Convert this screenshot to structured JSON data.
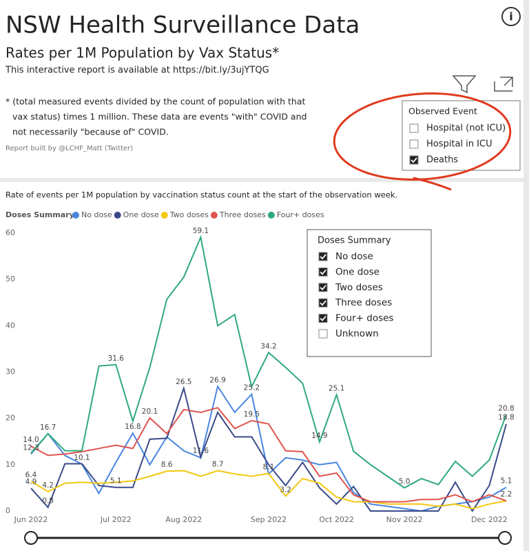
{
  "header": {
    "title": "NSW Health Surveillance Data",
    "subtitle": "Rates per 1M Population by Vax Status*",
    "link_note": "This interactive report is available at https://bit.ly/3ujYTQG",
    "footnote": [
      "* (total measured events divided by the count of population with that",
      "vax status) times 1 million.  These data are events \"with\" COVID and",
      "not necessarily \"because of\" COVID."
    ],
    "credit": "Report built by @LCHF_Matt (Twitter)"
  },
  "event_slicer": {
    "title": "Observed Event",
    "items": [
      {
        "label": "Hospital (not ICU)",
        "checked": false
      },
      {
        "label": "Hospital in ICU",
        "checked": false
      },
      {
        "label": "Deaths",
        "checked": true
      }
    ]
  },
  "dose_slicer": {
    "title": "Doses Summary",
    "items": [
      {
        "label": "No dose",
        "checked": true
      },
      {
        "label": "One dose",
        "checked": true
      },
      {
        "label": "Two doses",
        "checked": true
      },
      {
        "label": "Three doses",
        "checked": true
      },
      {
        "label": "Four+ doses",
        "checked": true
      },
      {
        "label": "Unknown",
        "checked": false
      }
    ]
  },
  "chart_data": {
    "type": "line",
    "title": "Rate of events per 1M population by vaccination status count at the start of the observation week.",
    "legend_title": "Doses Summary",
    "categories": [
      "Jun 2022",
      null,
      null,
      null,
      null,
      "Jul 2022",
      null,
      null,
      null,
      "Aug 2022",
      null,
      null,
      null,
      null,
      "Sep 2022",
      null,
      null,
      null,
      "Oct 2022",
      null,
      null,
      null,
      "Nov 2022",
      null,
      null,
      null,
      null,
      "Dec 2022",
      null
    ],
    "ylim": [
      0,
      60
    ],
    "yticks": [
      0,
      10,
      20,
      30,
      40,
      50,
      60
    ],
    "grid": false,
    "series": [
      {
        "name": "No dose",
        "color": "#4a86e0",
        "values": [
          12.3,
          16.7,
          12,
          10.1,
          3.8,
          10.5,
          16.8,
          10,
          16,
          13,
          11.5,
          26.9,
          21.3,
          25.2,
          8,
          11.5,
          11,
          10,
          10.5,
          4,
          1.5,
          1,
          0.5,
          0,
          1,
          1.5,
          2,
          3,
          5.1
        ],
        "value_labels": [
          "12.3",
          "16.7",
          null,
          "10.1",
          null,
          null,
          "16.8",
          null,
          null,
          null,
          null,
          "26.9",
          null,
          "25.2",
          null,
          null,
          null,
          null,
          null,
          null,
          null,
          null,
          null,
          null,
          null,
          null,
          null,
          null,
          "5.1"
        ]
      },
      {
        "name": "One dose",
        "color": "#3a4a8a",
        "values": [
          4.9,
          0.8,
          10.2,
          10.2,
          5.5,
          5.1,
          5.1,
          15.5,
          15.7,
          26.5,
          11.6,
          21.3,
          16,
          16,
          10,
          5.5,
          10.5,
          5,
          1.5,
          5.3,
          0,
          0,
          0,
          0,
          0,
          6.2,
          0,
          5.5,
          18.8
        ],
        "value_labels": [
          "4.9",
          "0.8",
          null,
          null,
          null,
          "5.1",
          null,
          null,
          null,
          "26.5",
          "11.6",
          null,
          null,
          null,
          null,
          null,
          null,
          null,
          null,
          null,
          null,
          null,
          null,
          null,
          null,
          null,
          null,
          null,
          "18.8"
        ]
      },
      {
        "name": "Two doses",
        "color": "#f2c80f",
        "values": [
          6.4,
          4.2,
          6,
          6.2,
          6,
          6.2,
          6.5,
          7.5,
          8.6,
          8.7,
          7.5,
          8.7,
          8,
          7.5,
          8.1,
          3.2,
          7,
          6,
          3,
          2,
          2,
          1.5,
          1.5,
          1.5,
          1,
          1.5,
          0.5,
          1.5,
          2.2
        ],
        "value_labels": [
          "6.4",
          "4.2",
          null,
          null,
          null,
          null,
          null,
          null,
          "8.6",
          null,
          null,
          "8.7",
          null,
          null,
          "8.1",
          "3.2",
          null,
          null,
          null,
          null,
          null,
          null,
          null,
          null,
          null,
          null,
          null,
          null,
          "2.2"
        ]
      },
      {
        "name": "Three doses",
        "color": "#e0534e",
        "values": [
          14,
          12,
          12.3,
          12.8,
          13.5,
          14.2,
          13.5,
          20.1,
          16.7,
          21.9,
          21.3,
          22.3,
          17.8,
          19.5,
          18.8,
          13,
          12.8,
          7.5,
          8.2,
          3.5,
          2,
          2,
          2,
          2.5,
          2.5,
          3.5,
          2,
          3.5,
          2.2
        ],
        "value_labels": [
          "14.0",
          null,
          null,
          null,
          null,
          null,
          null,
          "20.1",
          null,
          null,
          null,
          null,
          null,
          "19.5",
          null,
          null,
          null,
          null,
          null,
          null,
          null,
          null,
          null,
          null,
          null,
          null,
          null,
          null,
          null
        ]
      },
      {
        "name": "Four+ doses",
        "color": "#2faa7a",
        "values": [
          12.5,
          16.7,
          13,
          13,
          31.3,
          31.6,
          19.4,
          31,
          45.7,
          50.5,
          59.1,
          40,
          42.4,
          26.8,
          34.2,
          31,
          27.6,
          14.9,
          25.1,
          12.9,
          10,
          7.5,
          5,
          7,
          5.7,
          10.7,
          7.5,
          11,
          20.8
        ],
        "value_labels": [
          null,
          null,
          null,
          null,
          null,
          "31.6",
          null,
          null,
          null,
          null,
          "59.1",
          null,
          null,
          null,
          "34.2",
          null,
          null,
          "14.9",
          "25.1",
          null,
          null,
          null,
          "5.0",
          null,
          null,
          null,
          null,
          null,
          "20.8"
        ]
      }
    ]
  }
}
